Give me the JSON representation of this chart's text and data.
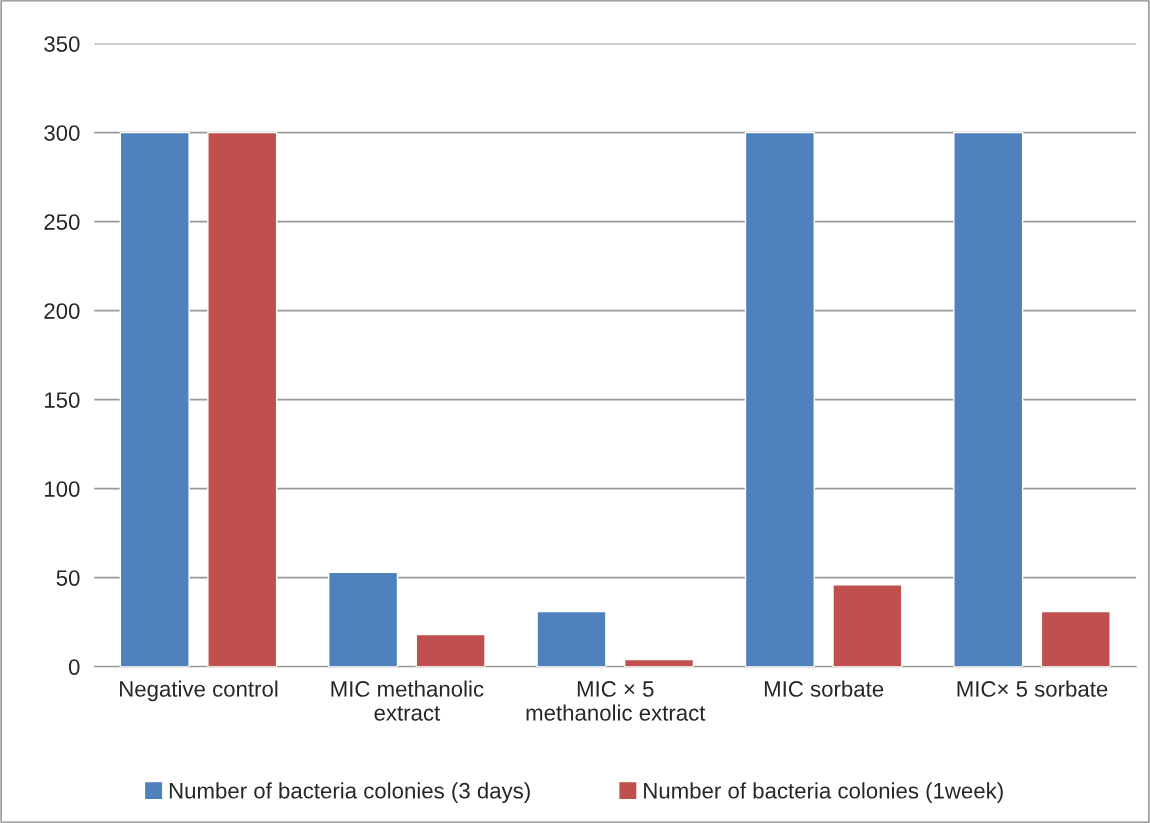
{
  "chart_data": {
    "type": "bar",
    "categories": [
      "Negative control",
      "MIC methanolic\nextract",
      "MIC × 5\nmethanolic extract",
      "MIC sorbate",
      "MIC× 5 sorbate"
    ],
    "series": [
      {
        "name": "Number of bacteria colonies (3 days)",
        "color": "#4f81bd",
        "values": [
          300,
          53,
          31,
          300,
          300
        ]
      },
      {
        "name": "Number of bacteria colonies (1week)",
        "color": "#c0504d",
        "values": [
          300,
          18,
          4,
          46,
          31
        ]
      }
    ],
    "ylim": [
      0,
      350
    ],
    "yticks": [
      0,
      50,
      100,
      150,
      200,
      250,
      300,
      350
    ],
    "grid": "y",
    "legend": "bottom"
  }
}
